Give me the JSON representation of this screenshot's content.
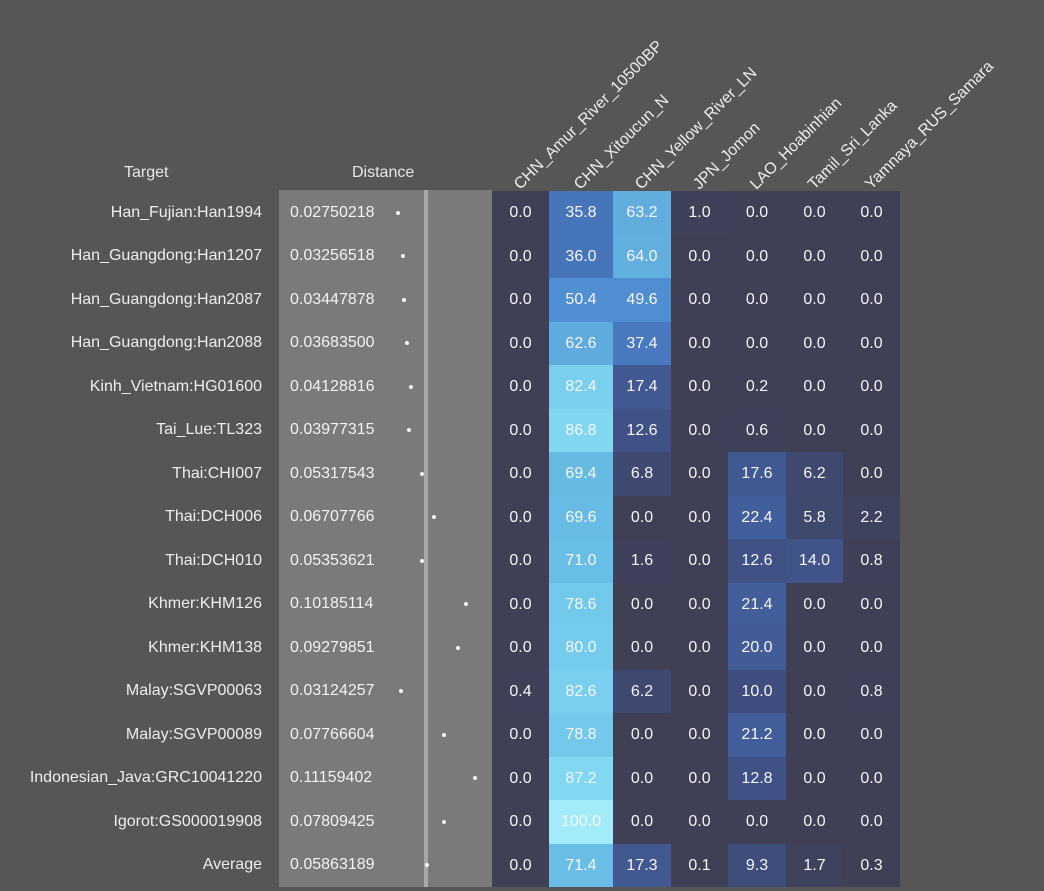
{
  "headers": {
    "target": "Target",
    "distance": "Distance"
  },
  "chart_data": {
    "type": "heatmap",
    "columns": [
      "CHN_Amur_River_10500BP",
      "CHN_Xitoucun_N",
      "CHN_Yellow_River_LN",
      "JPN_Jomon",
      "LAO_Hoabinhian",
      "Tamil_Sri_Lanka",
      "Yamnaya_RUS_Samara"
    ],
    "rows": [
      {
        "target": "Han_Fujian:Han1994",
        "distance": "0.02750218",
        "values": [
          "0.0",
          "35.8",
          "63.2",
          "1.0",
          "0.0",
          "0.0",
          "0.0"
        ]
      },
      {
        "target": "Han_Guangdong:Han1207",
        "distance": "0.03256518",
        "values": [
          "0.0",
          "36.0",
          "64.0",
          "0.0",
          "0.0",
          "0.0",
          "0.0"
        ]
      },
      {
        "target": "Han_Guangdong:Han2087",
        "distance": "0.03447878",
        "values": [
          "0.0",
          "50.4",
          "49.6",
          "0.0",
          "0.0",
          "0.0",
          "0.0"
        ]
      },
      {
        "target": "Han_Guangdong:Han2088",
        "distance": "0.03683500",
        "values": [
          "0.0",
          "62.6",
          "37.4",
          "0.0",
          "0.0",
          "0.0",
          "0.0"
        ]
      },
      {
        "target": "Kinh_Vietnam:HG01600",
        "distance": "0.04128816",
        "values": [
          "0.0",
          "82.4",
          "17.4",
          "0.0",
          "0.2",
          "0.0",
          "0.0"
        ]
      },
      {
        "target": "Tai_Lue:TL323",
        "distance": "0.03977315",
        "values": [
          "0.0",
          "86.8",
          "12.6",
          "0.0",
          "0.6",
          "0.0",
          "0.0"
        ]
      },
      {
        "target": "Thai:CHI007",
        "distance": "0.05317543",
        "values": [
          "0.0",
          "69.4",
          "6.8",
          "0.0",
          "17.6",
          "6.2",
          "0.0"
        ]
      },
      {
        "target": "Thai:DCH006",
        "distance": "0.06707766",
        "values": [
          "0.0",
          "69.6",
          "0.0",
          "0.0",
          "22.4",
          "5.8",
          "2.2"
        ]
      },
      {
        "target": "Thai:DCH010",
        "distance": "0.05353621",
        "values": [
          "0.0",
          "71.0",
          "1.6",
          "0.0",
          "12.6",
          "14.0",
          "0.8"
        ]
      },
      {
        "target": "Khmer:KHM126",
        "distance": "0.10185114",
        "values": [
          "0.0",
          "78.6",
          "0.0",
          "0.0",
          "21.4",
          "0.0",
          "0.0"
        ]
      },
      {
        "target": "Khmer:KHM138",
        "distance": "0.09279851",
        "values": [
          "0.0",
          "80.0",
          "0.0",
          "0.0",
          "20.0",
          "0.0",
          "0.0"
        ]
      },
      {
        "target": "Malay:SGVP00063",
        "distance": "0.03124257",
        "values": [
          "0.4",
          "82.6",
          "6.2",
          "0.0",
          "10.0",
          "0.0",
          "0.8"
        ]
      },
      {
        "target": "Malay:SGVP00089",
        "distance": "0.07766604",
        "values": [
          "0.0",
          "78.8",
          "0.0",
          "0.0",
          "21.2",
          "0.0",
          "0.0"
        ]
      },
      {
        "target": "Indonesian_Java:GRC10041220",
        "distance": "0.11159402",
        "values": [
          "0.0",
          "87.2",
          "0.0",
          "0.0",
          "12.8",
          "0.0",
          "0.0"
        ]
      },
      {
        "target": "Igorot:GS000019908",
        "distance": "0.07809425",
        "values": [
          "0.0",
          "100.0",
          "0.0",
          "0.0",
          "0.0",
          "0.0",
          "0.0"
        ]
      },
      {
        "target": "Average",
        "distance": "0.05863189",
        "values": [
          "0.0",
          "71.4",
          "17.3",
          "0.1",
          "9.3",
          "1.7",
          "0.3"
        ]
      }
    ],
    "color_scale": {
      "min": 0,
      "max": 100,
      "low": "#3f3f55",
      "high": "#a2ecfa"
    }
  }
}
